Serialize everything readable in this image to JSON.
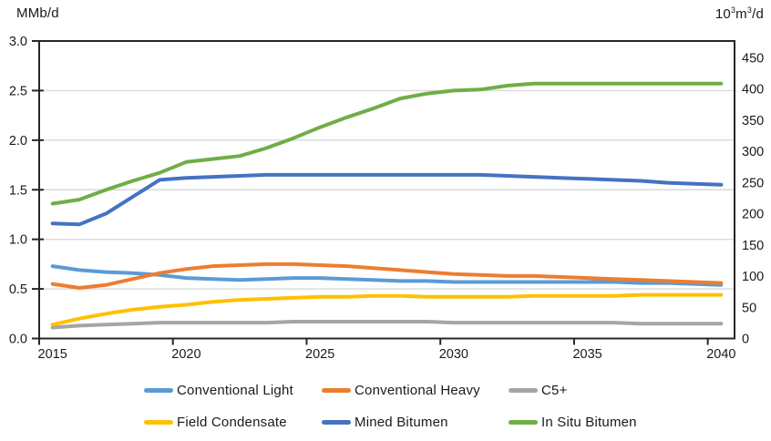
{
  "axes": {
    "left_title": "MMb/d",
    "right_title": {
      "base1": "10",
      "sup1": "3",
      "base2": "m",
      "sup2": "3",
      "base3": "/d"
    },
    "left_tick_labels": [
      "3.0",
      "2.5",
      "2.0",
      "1.5",
      "1.0",
      "0.5",
      "0.0"
    ],
    "right_tick_labels": [
      "450",
      "400",
      "350",
      "300",
      "250",
      "200",
      "150",
      "100",
      "50",
      "0"
    ],
    "x_tick_labels": [
      "2015",
      "2020",
      "2025",
      "2030",
      "2035",
      "2040"
    ]
  },
  "chart_data": {
    "type": "line",
    "title": "",
    "x": [
      2015,
      2016,
      2017,
      2018,
      2019,
      2020,
      2021,
      2022,
      2023,
      2024,
      2025,
      2026,
      2027,
      2028,
      2029,
      2030,
      2031,
      2032,
      2033,
      2034,
      2035,
      2036,
      2037,
      2038,
      2039,
      2040
    ],
    "series": [
      {
        "name": "Conventional Light",
        "slug": "conventional-light",
        "color": "#5B9BD5",
        "values": [
          0.73,
          0.69,
          0.67,
          0.66,
          0.64,
          0.61,
          0.6,
          0.59,
          0.6,
          0.61,
          0.61,
          0.6,
          0.59,
          0.58,
          0.58,
          0.57,
          0.57,
          0.57,
          0.57,
          0.57,
          0.57,
          0.57,
          0.56,
          0.56,
          0.55,
          0.54
        ]
      },
      {
        "name": "Conventional Heavy",
        "slug": "conventional-heavy",
        "color": "#ED7D31",
        "values": [
          0.55,
          0.51,
          0.54,
          0.6,
          0.66,
          0.7,
          0.73,
          0.74,
          0.75,
          0.75,
          0.74,
          0.73,
          0.71,
          0.69,
          0.67,
          0.65,
          0.64,
          0.63,
          0.63,
          0.62,
          0.61,
          0.6,
          0.59,
          0.58,
          0.57,
          0.56
        ]
      },
      {
        "name": "C5+",
        "slug": "c5-plus",
        "color": "#A5A5A5",
        "values": [
          0.11,
          0.13,
          0.14,
          0.15,
          0.16,
          0.16,
          0.16,
          0.16,
          0.16,
          0.17,
          0.17,
          0.17,
          0.17,
          0.17,
          0.17,
          0.16,
          0.16,
          0.16,
          0.16,
          0.16,
          0.16,
          0.16,
          0.15,
          0.15,
          0.15,
          0.15
        ]
      },
      {
        "name": "Field Condensate",
        "slug": "field-condensate",
        "color": "#FFC000",
        "values": [
          0.14,
          0.2,
          0.25,
          0.29,
          0.32,
          0.34,
          0.37,
          0.39,
          0.4,
          0.41,
          0.42,
          0.42,
          0.43,
          0.43,
          0.42,
          0.42,
          0.42,
          0.42,
          0.43,
          0.43,
          0.43,
          0.43,
          0.44,
          0.44,
          0.44,
          0.44
        ]
      },
      {
        "name": "Mined Bitumen",
        "slug": "mined-bitumen",
        "color": "#4472C4",
        "values": [
          1.16,
          1.15,
          1.26,
          1.43,
          1.6,
          1.62,
          1.63,
          1.64,
          1.65,
          1.65,
          1.65,
          1.65,
          1.65,
          1.65,
          1.65,
          1.65,
          1.65,
          1.64,
          1.63,
          1.62,
          1.61,
          1.6,
          1.59,
          1.57,
          1.56,
          1.55
        ]
      },
      {
        "name": "In Situ Bitumen",
        "slug": "in-situ-bitumen",
        "color": "#70AD47",
        "values": [
          1.36,
          1.4,
          1.5,
          1.59,
          1.67,
          1.78,
          1.81,
          1.84,
          1.92,
          2.02,
          2.13,
          2.23,
          2.32,
          2.42,
          2.47,
          2.5,
          2.51,
          2.55,
          2.57,
          2.57,
          2.57,
          2.57,
          2.57,
          2.57,
          2.57,
          2.57
        ]
      }
    ],
    "left_axis": {
      "label": "MMb/d",
      "min": 0.0,
      "max": 3.0,
      "step": 0.5
    },
    "right_axis": {
      "label": "10³m³/d",
      "ticks": [
        0,
        50,
        100,
        150,
        200,
        250,
        300,
        350,
        400,
        450
      ],
      "conversion_mmbd_to_103m3d": 158.99
    },
    "x_axis": {
      "ticks": [
        2015,
        2020,
        2025,
        2030,
        2035,
        2040
      ],
      "range": [
        2014.5,
        2040.5
      ]
    },
    "grid": true,
    "gridline_color": "#D9D9D9",
    "axis_color": "#262626",
    "legend_position": "bottom"
  }
}
